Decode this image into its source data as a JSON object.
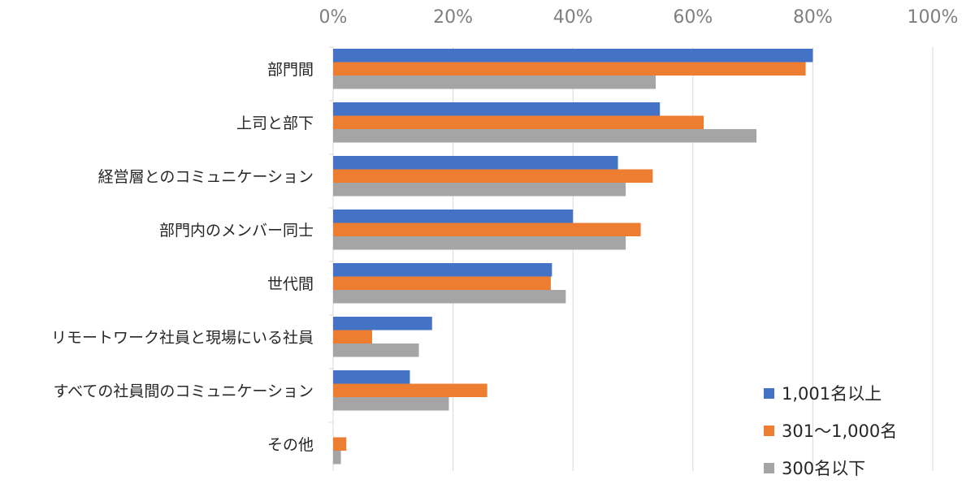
{
  "chart_data": {
    "type": "bar",
    "orientation": "horizontal",
    "title": "",
    "xlabel": "",
    "ylabel": "",
    "xlim": [
      0,
      100
    ],
    "x_ticks": [
      "0%",
      "20%",
      "40%",
      "60%",
      "80%",
      "100%"
    ],
    "x_axis_position": "top",
    "grid": true,
    "legend_position": "bottom-right",
    "categories": [
      "部門間",
      "上司と部下",
      "経営層とのコミュニケーション",
      "部門内のメンバー同士",
      "世代間",
      "リモートワーク社員と現場にいる社員",
      "すべての社員間のコミュニケーション",
      "その他"
    ],
    "series": [
      {
        "name": "1,001名以上",
        "color": "#4472c4",
        "values": [
          80,
          54.5,
          47.5,
          40,
          36.5,
          16.5,
          12.8,
          0
        ]
      },
      {
        "name": "301～1,000名",
        "color": "#ed7d31",
        "values": [
          78.8,
          61.8,
          53.3,
          51.3,
          36.3,
          6.5,
          25.7,
          2.2
        ]
      },
      {
        "name": "300名以下",
        "color": "#a5a5a5",
        "values": [
          53.8,
          70.6,
          48.8,
          48.8,
          38.8,
          14.3,
          19.3,
          1.3
        ]
      }
    ]
  }
}
